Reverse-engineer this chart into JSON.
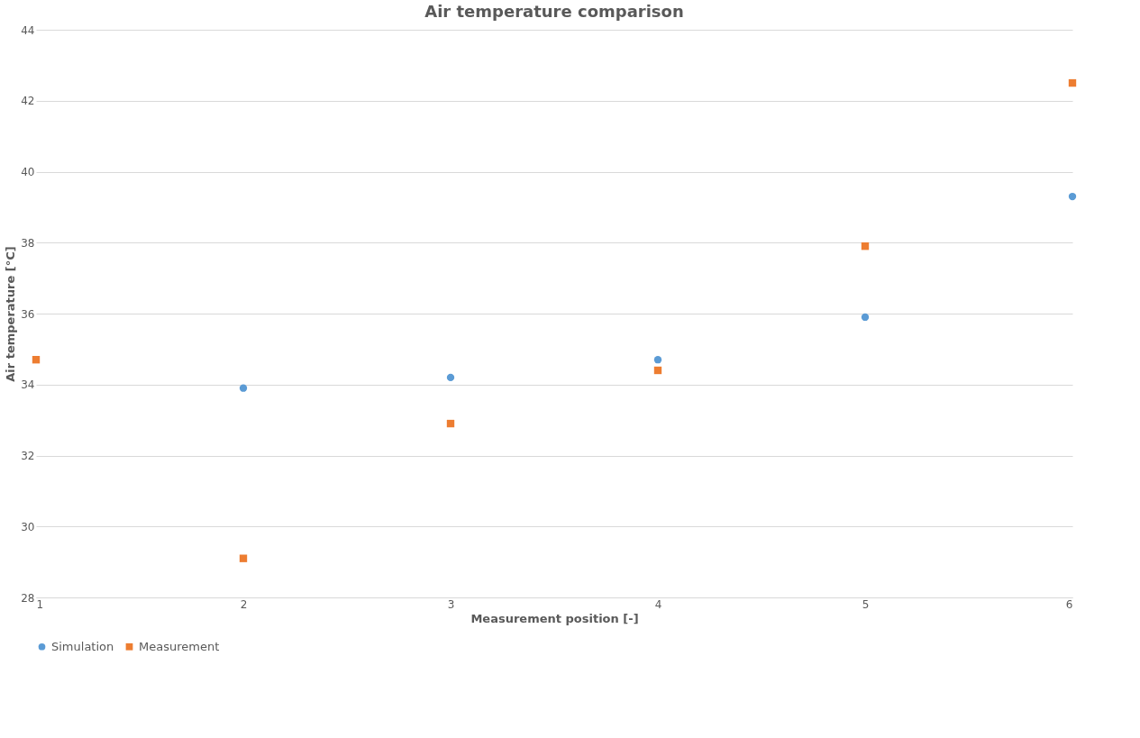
{
  "chart_data": {
    "type": "scatter",
    "title": "Air temperature comparison",
    "xlabel": "Measurement position [-]",
    "ylabel": "Air temperature [°C]",
    "x": [
      1,
      2,
      3,
      4,
      5,
      6
    ],
    "series": [
      {
        "name": "Simulation",
        "color": "#5b9bd5",
        "marker": "circle",
        "values": [
          null,
          33.9,
          34.2,
          34.7,
          35.9,
          39.3
        ]
      },
      {
        "name": "Measurement",
        "color": "#ed7d31",
        "marker": "square",
        "values": [
          34.7,
          29.1,
          32.9,
          34.4,
          37.9,
          42.5
        ]
      }
    ],
    "xlim": [
      1,
      6
    ],
    "xticks": [
      1,
      2,
      3,
      4,
      5,
      6
    ],
    "ylim": [
      28,
      44
    ],
    "yticks": [
      28,
      30,
      32,
      34,
      36,
      38,
      40,
      42,
      44
    ],
    "grid": "y",
    "legend": "bottom"
  }
}
